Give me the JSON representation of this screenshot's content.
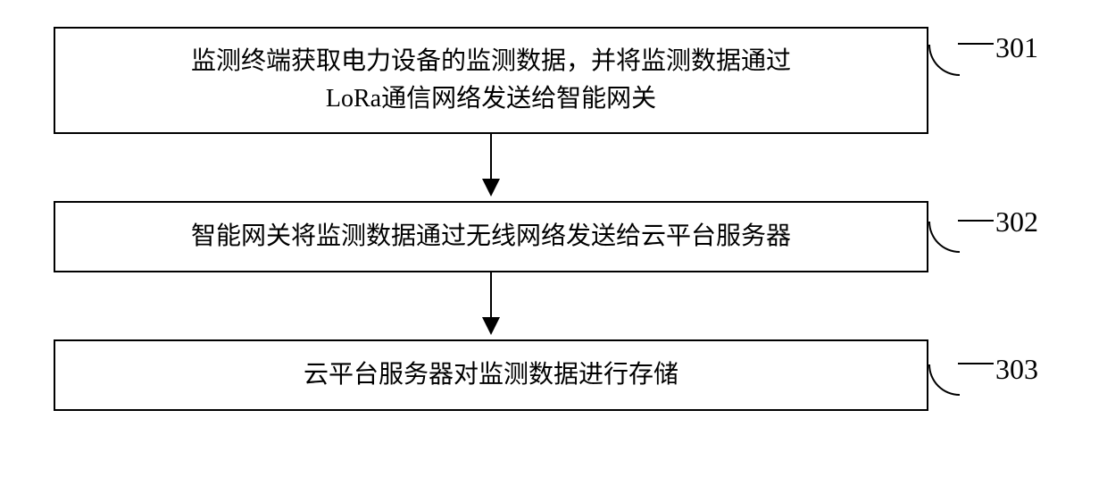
{
  "flowchart": {
    "type": "flowchart",
    "background_color": "#ffffff",
    "border_color": "#000000",
    "border_width": 2,
    "text_color": "#000000",
    "font_size": 28,
    "font_family": "SimSun",
    "label_font_size": 32,
    "label_font_family": "Times New Roman",
    "arrow_color": "#000000",
    "boxes": [
      {
        "id": "box1",
        "line1": "监测终端获取电力设备的监测数据，并将监测数据通过",
        "line2": "LoRa通信网络发送给智能网关",
        "label": "301"
      },
      {
        "id": "box2",
        "text": "智能网关将监测数据通过无线网络发送给云平台服务器",
        "label": "302"
      },
      {
        "id": "box3",
        "text": "云平台服务器对监测数据进行存储",
        "label": "303"
      }
    ],
    "arrows": [
      {
        "from": "box1",
        "to": "box2"
      },
      {
        "from": "box2",
        "to": "box3"
      }
    ]
  }
}
